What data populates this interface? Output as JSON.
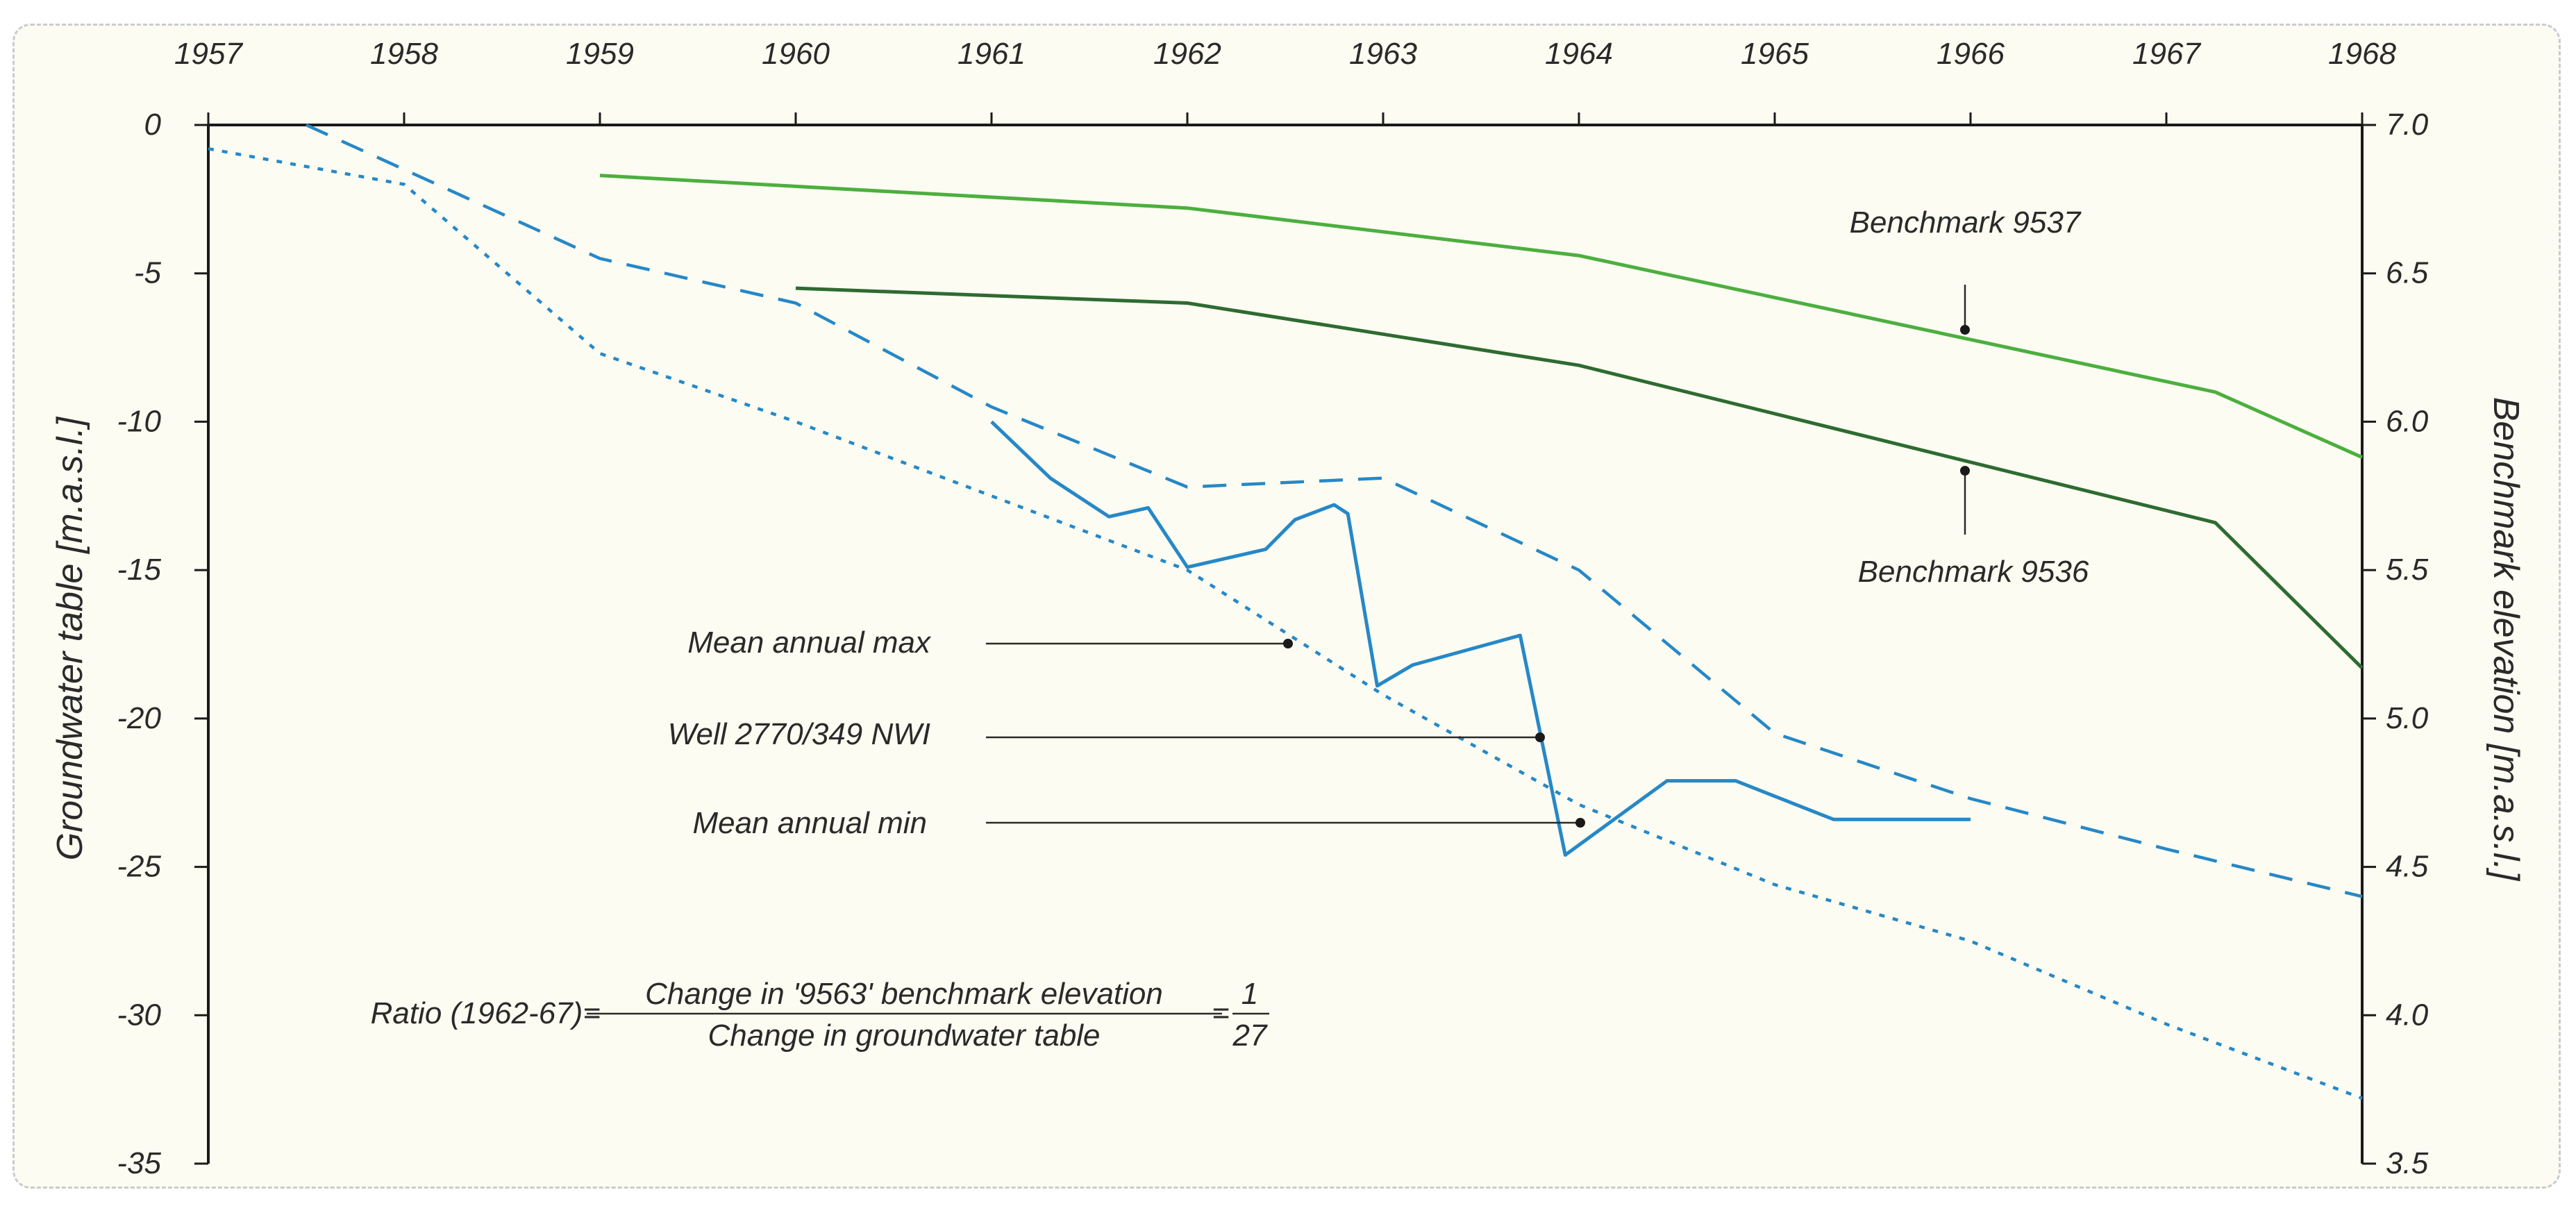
{
  "chart_data": {
    "type": "line",
    "title": "",
    "x_axis": {
      "ticks": [
        "1957",
        "1958",
        "1959",
        "1960",
        "1961",
        "1962",
        "1963",
        "1964",
        "1965",
        "1966",
        "1967",
        "1968"
      ],
      "range": [
        1957,
        1968
      ],
      "position": "top"
    },
    "y_left": {
      "label": "Groundwater table [m.a.s.l.]",
      "ticks": [
        "0",
        "-5",
        "-10",
        "-15",
        "-20",
        "-25",
        "-30",
        "-35"
      ],
      "range": [
        -35,
        0
      ]
    },
    "y_right": {
      "label": "Benchmark elevation [m.a.s.l.]",
      "ticks": [
        "7.0",
        "6.5",
        "6.0",
        "5.5",
        "5.0",
        "4.5",
        "4.0",
        "3.5"
      ],
      "range": [
        3.5,
        7.0
      ]
    },
    "grid": false,
    "series": [
      {
        "name": "Benchmark 9537",
        "axis": "right",
        "style": "solid",
        "color": "#4caf3e",
        "points": [
          [
            1959.0,
            6.83
          ],
          [
            1962.0,
            6.72
          ],
          [
            1964.0,
            6.56
          ],
          [
            1967.25,
            6.1
          ],
          [
            1968.0,
            5.88
          ]
        ]
      },
      {
        "name": "Benchmark 9536",
        "axis": "right",
        "style": "solid",
        "color": "#2e6b31",
        "points": [
          [
            1960.0,
            6.45
          ],
          [
            1962.0,
            6.4
          ],
          [
            1964.0,
            6.19
          ],
          [
            1967.25,
            5.66
          ],
          [
            1968.0,
            5.17
          ]
        ]
      },
      {
        "name": "Mean annual max",
        "axis": "left",
        "style": "dashed",
        "color": "#2688c7",
        "points": [
          [
            1957.5,
            0.0
          ],
          [
            1958.0,
            -1.5
          ],
          [
            1959.0,
            -4.5
          ],
          [
            1960.0,
            -6.0
          ],
          [
            1961.0,
            -9.5
          ],
          [
            1962.0,
            -12.2
          ],
          [
            1963.0,
            -11.9
          ],
          [
            1964.0,
            -15.0
          ],
          [
            1965.0,
            -20.5
          ],
          [
            1966.0,
            -22.7
          ],
          [
            1967.0,
            -24.4
          ],
          [
            1968.0,
            -26.0
          ]
        ]
      },
      {
        "name": "Mean annual min",
        "axis": "left",
        "style": "dotted",
        "color": "#2688c7",
        "points": [
          [
            1957.0,
            -0.8
          ],
          [
            1958.0,
            -2.0
          ],
          [
            1959.0,
            -7.7
          ],
          [
            1960.0,
            -10.0
          ],
          [
            1961.0,
            -12.5
          ],
          [
            1962.0,
            -15.0
          ],
          [
            1963.0,
            -19.2
          ],
          [
            1964.0,
            -22.9
          ],
          [
            1965.0,
            -25.6
          ],
          [
            1966.0,
            -27.5
          ],
          [
            1967.0,
            -30.3
          ],
          [
            1968.0,
            -32.8
          ]
        ]
      },
      {
        "name": "Well 2770/349 NWI",
        "axis": "left",
        "style": "solid",
        "color": "#2688c7",
        "points": [
          [
            1961.0,
            -10.0
          ],
          [
            1961.3,
            -11.9
          ],
          [
            1961.6,
            -13.2
          ],
          [
            1961.8,
            -12.9
          ],
          [
            1962.0,
            -14.9
          ],
          [
            1962.4,
            -14.3
          ],
          [
            1962.55,
            -13.3
          ],
          [
            1962.75,
            -12.8
          ],
          [
            1962.82,
            -13.1
          ],
          [
            1962.97,
            -18.9
          ],
          [
            1963.15,
            -18.2
          ],
          [
            1963.7,
            -17.2
          ],
          [
            1963.93,
            -24.6
          ],
          [
            1964.45,
            -22.1
          ],
          [
            1964.8,
            -22.1
          ],
          [
            1965.3,
            -23.4
          ],
          [
            1966.0,
            -23.4
          ]
        ]
      }
    ],
    "annotations": {
      "benchmark_9537": "Benchmark 9537",
      "benchmark_9536": "Benchmark 9536",
      "mean_annual_max": "Mean annual max",
      "well": "Well 2770/349 NWI",
      "mean_annual_min": "Mean annual min",
      "ratio_prefix": "Ratio (1962-67)=",
      "ratio_numerator": "Change in '9563' benchmark elevation",
      "ratio_denominator": "Change in groundwater table",
      "ratio_equals": "=",
      "ratio_value_numerator": "1",
      "ratio_value_denominator": "27"
    }
  }
}
